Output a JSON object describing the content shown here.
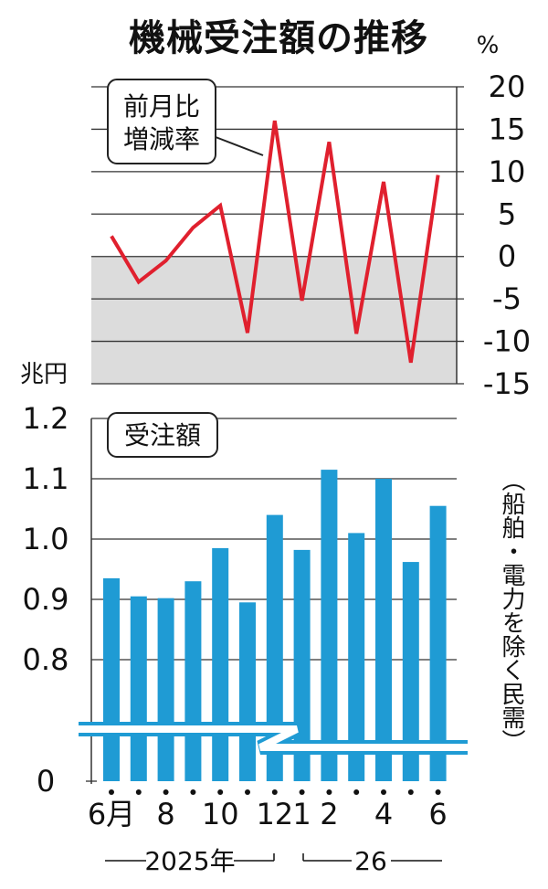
{
  "colors": {
    "line": "#e0202e",
    "bar": "#1f9bd4",
    "shade": "#dcdcdc",
    "grid": "#333333"
  },
  "chart_data": [
    {
      "type": "line",
      "title": "機械受注額の推移",
      "unit": "%",
      "series_label_line1": "前月比",
      "series_label_line2": "増減率",
      "ylim": [
        -15,
        20
      ],
      "yticks": [
        "20",
        "15",
        "10",
        "5",
        "0",
        "-5",
        "-10",
        "-15"
      ],
      "shaded_below_zero": true,
      "x": [
        "2025-06",
        "2025-07",
        "2025-08",
        "2025-09",
        "2025-10",
        "2025-11",
        "2025-12",
        "2026-01",
        "2026-02",
        "2026-03",
        "2026-04",
        "2026-05",
        "2026-06"
      ],
      "values": [
        2.4,
        -3.0,
        -0.5,
        3.4,
        6.0,
        -9.0,
        16.0,
        -5.2,
        13.5,
        -9.1,
        8.8,
        -12.5,
        9.6
      ]
    },
    {
      "type": "bar",
      "unit": "兆円",
      "series_label": "受注額",
      "note": "（船舶・電力を除く民需）",
      "axis_break": true,
      "ylim": [
        0,
        1.2
      ],
      "yticks": [
        "1.2",
        "1.1",
        "1.0",
        "0.9",
        "0.8",
        "0"
      ],
      "categories": [
        "6月",
        "",
        "8",
        "",
        "10",
        "",
        "12",
        "1",
        "2",
        "",
        "4",
        "",
        "6"
      ],
      "values": [
        0.935,
        0.905,
        0.902,
        0.93,
        0.985,
        0.895,
        1.04,
        0.982,
        1.115,
        1.01,
        1.1,
        0.962,
        1.055
      ],
      "year_labels": [
        "2025年",
        "26"
      ]
    }
  ]
}
